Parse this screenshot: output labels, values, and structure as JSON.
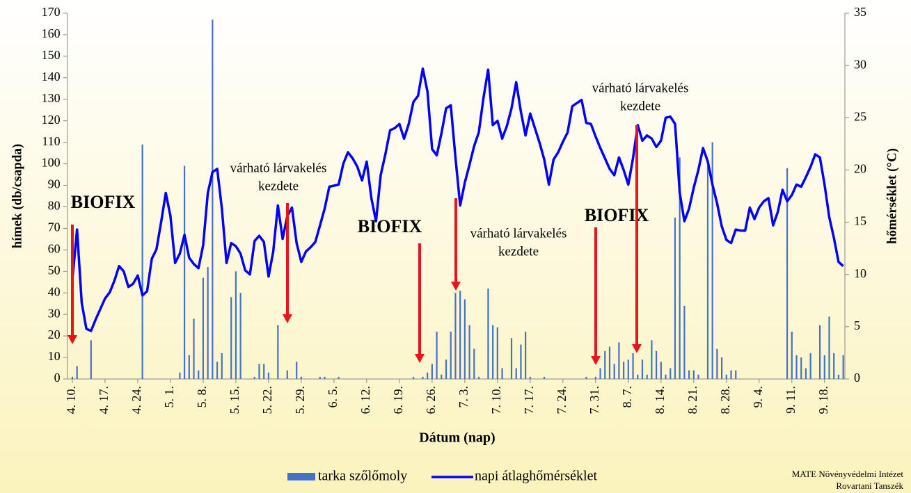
{
  "chart_data": {
    "type": "combo",
    "categories": [
      "4. 10.",
      null,
      null,
      null,
      null,
      null,
      null,
      "4. 17.",
      null,
      null,
      null,
      null,
      null,
      null,
      "4. 24.",
      null,
      null,
      null,
      null,
      null,
      null,
      "5. 1.",
      null,
      null,
      null,
      null,
      null,
      null,
      "5. 8.",
      null,
      null,
      null,
      null,
      null,
      null,
      "5. 15.",
      null,
      null,
      null,
      null,
      null,
      null,
      "5. 22.",
      null,
      null,
      null,
      null,
      null,
      null,
      "5. 29.",
      null,
      null,
      null,
      null,
      null,
      null,
      "6. 5.",
      null,
      null,
      null,
      null,
      null,
      null,
      "6. 12.",
      null,
      null,
      null,
      null,
      null,
      null,
      "6. 19.",
      null,
      null,
      null,
      null,
      null,
      null,
      "6. 26.",
      null,
      null,
      null,
      null,
      null,
      null,
      "7. 3.",
      null,
      null,
      null,
      null,
      null,
      null,
      "7. 10.",
      null,
      null,
      null,
      null,
      null,
      null,
      "7. 17.",
      null,
      null,
      null,
      null,
      null,
      null,
      "7. 24.",
      null,
      null,
      null,
      null,
      null,
      null,
      "7. 31.",
      null,
      null,
      null,
      null,
      null,
      null,
      "8. 7.",
      null,
      null,
      null,
      null,
      null,
      null,
      "8. 14.",
      null,
      null,
      null,
      null,
      null,
      null,
      "8. 21.",
      null,
      null,
      null,
      null,
      null,
      null,
      "8. 28.",
      null,
      null,
      null,
      null,
      null,
      null,
      "9. 4.",
      null,
      null,
      null,
      null,
      null,
      null,
      "9. 11.",
      null,
      null,
      null,
      null,
      null,
      null,
      "9. 18.",
      null,
      null,
      null,
      null
    ],
    "series": [
      {
        "name": "tarka szőlőmoly",
        "type": "bar",
        "color": "#4472c4",
        "values": [
          1,
          6,
          0,
          0,
          18,
          0,
          0,
          0,
          0,
          0,
          0,
          0,
          0,
          0,
          0,
          109,
          0,
          0,
          0,
          0,
          0,
          0,
          0,
          3,
          99,
          11,
          28,
          4,
          47,
          52,
          167,
          8,
          12,
          0,
          38,
          50,
          40,
          0,
          0,
          1,
          7,
          7,
          3,
          0,
          25,
          0,
          4,
          0,
          8,
          1,
          0,
          0,
          0,
          1,
          1,
          0,
          0,
          1,
          0,
          0,
          0,
          0,
          0,
          0,
          0,
          0,
          0,
          0,
          0,
          0,
          0,
          0,
          0,
          1,
          0,
          1,
          3,
          7,
          22,
          2,
          9,
          22,
          40,
          41,
          37,
          25,
          14,
          1,
          0,
          42,
          25,
          24,
          5,
          0,
          19,
          5,
          16,
          22,
          1,
          0,
          0,
          1,
          0,
          0,
          0,
          0,
          0,
          0,
          0,
          0,
          1,
          0,
          1,
          5,
          13,
          15,
          7,
          17,
          8,
          9,
          12,
          2,
          9,
          2,
          18,
          13,
          8,
          2,
          5,
          75,
          103,
          34,
          4,
          4,
          2,
          0,
          99,
          110,
          14,
          10,
          2,
          4,
          4,
          0,
          0,
          0,
          0,
          0,
          0,
          0,
          0,
          0,
          0,
          98,
          22,
          11,
          10,
          5,
          12,
          0,
          25,
          11,
          29,
          12,
          2,
          11
        ]
      },
      {
        "name": "napi átlaghőmérséklet",
        "type": "line",
        "axis": "y2",
        "color": "#0000ff",
        "values": [
          9.5,
          14.3,
          7.3,
          4.8,
          4.6,
          5.7,
          6.7,
          7.7,
          8.3,
          9.4,
          10.8,
          10.3,
          8.8,
          9.1,
          9.9,
          8.0,
          8.4,
          11.5,
          12.4,
          15.0,
          17.8,
          15.6,
          11.1,
          12.0,
          13.8,
          11.6,
          11.0,
          10.6,
          12.8,
          17.8,
          19.8,
          20.1,
          16.3,
          11.1,
          13.0,
          12.7,
          12.0,
          10.4,
          10.0,
          13.2,
          13.7,
          13.1,
          9.8,
          12.2,
          16.6,
          13.4,
          15.6,
          16.4,
          13.0,
          11.2,
          12.2,
          12.6,
          13.1,
          14.7,
          16.3,
          18.4,
          18.5,
          18.6,
          20.6,
          21.7,
          21.1,
          20.3,
          19.0,
          20.8,
          17.3,
          15.1,
          19.5,
          21.5,
          23.8,
          24.0,
          24.4,
          23.0,
          24.4,
          26.5,
          27.1,
          29.7,
          27.5,
          22.0,
          21.4,
          23.5,
          25.9,
          26.2,
          21.2,
          16.6,
          18.8,
          20.5,
          22.3,
          23.6,
          26.9,
          29.6,
          24.3,
          24.7,
          23.0,
          24.2,
          25.9,
          28.4,
          25.6,
          23.3,
          25.4,
          24.0,
          22.6,
          21.0,
          18.6,
          21.0,
          21.7,
          22.7,
          23.6,
          26.1,
          26.4,
          26.7,
          24.5,
          24.4,
          23.2,
          22.1,
          21.1,
          20.1,
          19.5,
          21.2,
          20.0,
          18.6,
          21.1,
          24.3,
          22.8,
          23.3,
          23.0,
          22.2,
          22.8,
          25.0,
          25.1,
          24.4,
          17.8,
          15.1,
          16.3,
          18.3,
          20.0,
          22.1,
          20.8,
          18.6,
          16.8,
          14.6,
          13.3,
          13.0,
          14.3,
          14.2,
          14.2,
          16.4,
          15.3,
          16.4,
          17.0,
          17.3,
          14.7,
          16.0,
          18.1,
          17.0,
          17.6,
          18.6,
          18.4,
          19.3,
          20.3,
          21.5,
          21.2,
          18.6,
          15.5,
          13.5,
          11.2,
          10.8
        ]
      }
    ],
    "ylim": [
      0,
      170
    ],
    "yticks": [
      0,
      10,
      20,
      30,
      40,
      50,
      60,
      70,
      80,
      90,
      100,
      110,
      120,
      130,
      140,
      150,
      160,
      170
    ],
    "y2lim": [
      0,
      35
    ],
    "y2ticks": [
      0,
      5,
      10,
      15,
      20,
      25,
      30,
      35
    ],
    "ylabel": "hímek (db/csapda)",
    "y2label": "hőmérséklet (°C)",
    "xlabel": "Dátum (nap)",
    "annotations": [
      {
        "lines": [
          "BIOFIX"
        ]
      },
      {
        "lines": [
          "várható lárvakelés",
          "kezdete"
        ]
      },
      {
        "lines": [
          "BIOFIX"
        ]
      },
      {
        "lines": [
          "várható lárvakelés",
          "kezdete"
        ]
      },
      {
        "lines": [
          "BIOFIX"
        ]
      },
      {
        "lines": [
          "várható lárvakelés",
          "kezdete"
        ]
      }
    ],
    "source": [
      "MATE Növényvédelmi Intézet",
      "Rovartani Tanszék"
    ]
  }
}
